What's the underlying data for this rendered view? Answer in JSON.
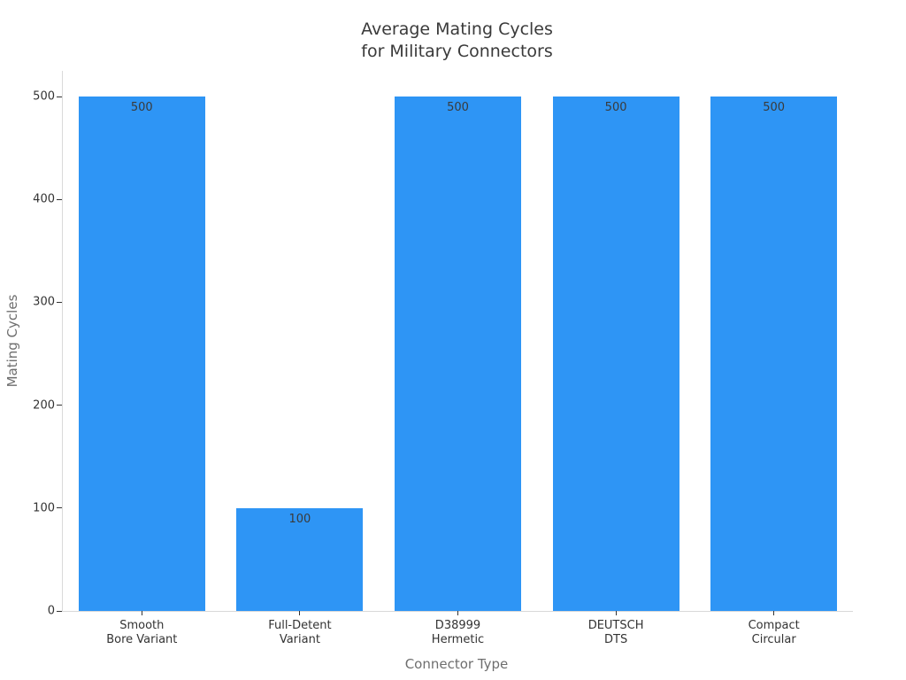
{
  "chart_data": {
    "type": "bar",
    "title": "Average Mating Cycles\nfor Military Connectors",
    "title_lines": [
      "Average Mating Cycles",
      "for Military Connectors"
    ],
    "xlabel": "Connector Type",
    "ylabel": "Mating Cycles",
    "categories": [
      [
        "Smooth",
        "Bore Variant"
      ],
      [
        "Full-Detent",
        "Variant"
      ],
      [
        "D38999",
        "Hermetic"
      ],
      [
        "DEUTSCH",
        "DTS"
      ],
      [
        "Compact",
        "Circular"
      ]
    ],
    "values": [
      500,
      100,
      500,
      500,
      500
    ],
    "bar_value_labels": [
      "500",
      "100",
      "500",
      "500",
      "500"
    ],
    "yticks": [
      0,
      100,
      200,
      300,
      400,
      500
    ],
    "ylim": [
      0,
      525
    ],
    "bar_width_fraction": 0.8,
    "grid": false,
    "legend": false,
    "colors": {
      "bar": "#2e95f5",
      "title": "#3a3a3a",
      "tick_label": "#333333",
      "tick_mark": "#333333",
      "bar_value_label": "#3a3a3a",
      "axis_label": "#6e6e6e",
      "spine": "#d9d9d9",
      "background": "#ffffff"
    }
  }
}
